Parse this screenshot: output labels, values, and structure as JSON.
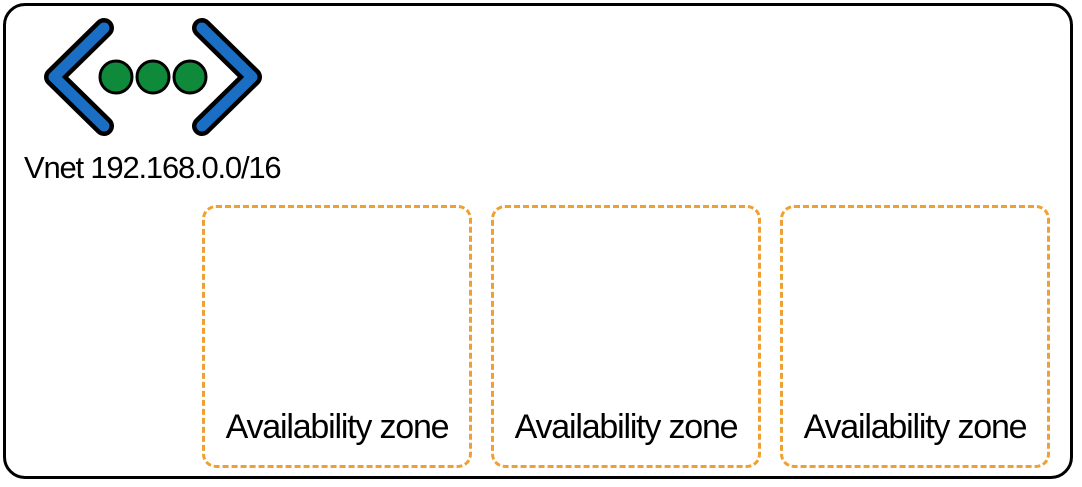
{
  "vnet": {
    "label": "Vnet 192.168.0.0/16",
    "icon": "virtual-network-icon",
    "colors": {
      "chevron": "#1a6fc4",
      "dots": "#0f8a3a",
      "zone_border": "#f0a032"
    }
  },
  "zones": [
    {
      "label": "Availability zone"
    },
    {
      "label": "Availability zone"
    },
    {
      "label": "Availability zone"
    }
  ]
}
